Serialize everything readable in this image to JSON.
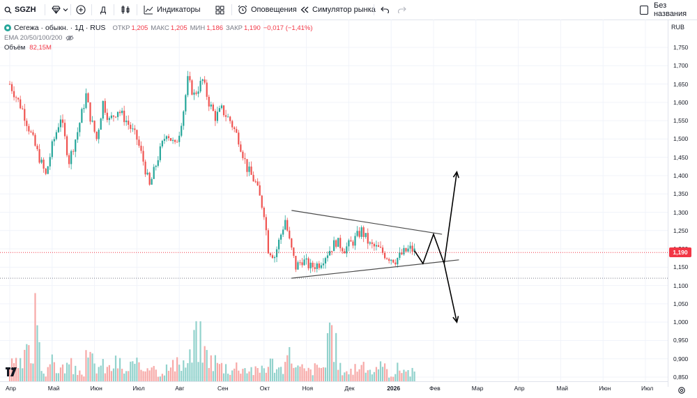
{
  "toolbar": {
    "symbol": "SGZH",
    "interval": "Д",
    "indicators_label": "Индикаторы",
    "alerts_label": "Оповещения",
    "replay_label": "Симулятор рынка",
    "layout_name": "Без названия"
  },
  "legend": {
    "title": "Сегежа · обыкн. · 1Д · RUS",
    "open_label": "ОТКР",
    "open": "1,205",
    "high_label": "МАКС",
    "high": "1,205",
    "low_label": "МИН",
    "low": "1,186",
    "close_label": "ЗАКР",
    "close": "1,190",
    "change": "−0,017 (−1,41%)",
    "ema": "EMA 20/50/100/200",
    "volume_label": "Объём",
    "volume": "82,15M"
  },
  "price_axis": {
    "currency": "RUB",
    "current_price": "1,190",
    "ticks": [
      "1,750",
      "1,700",
      "1,650",
      "1,600",
      "1,550",
      "1,500",
      "1,450",
      "1,400",
      "1,350",
      "1,300",
      "1,250",
      "1,200",
      "1,150",
      "1,100",
      "1,050",
      "1,000",
      "0,950",
      "0,900",
      "0,850"
    ]
  },
  "time_axis": {
    "labels": [
      "Апр",
      "Май",
      "Июн",
      "Июл",
      "Авг",
      "Сен",
      "Окт",
      "Ноя",
      "Дек",
      "2026",
      "Фев",
      "Мар",
      "Апр",
      "Май",
      "Июн",
      "Июл"
    ]
  },
  "colors": {
    "up": "#26a69a",
    "down": "#ef5350",
    "current": "#f23645",
    "drawing": "#000000"
  },
  "chart_data": {
    "type": "candlestick",
    "title": "Сегежа · обыкн. · 1Д · RUS",
    "ylim": [
      0.84,
      1.78
    ],
    "price_ticks": [
      1.75,
      1.7,
      1.65,
      1.6,
      1.55,
      1.5,
      1.45,
      1.4,
      1.35,
      1.3,
      1.25,
      1.2,
      1.15,
      1.1,
      1.05,
      1.0,
      0.95,
      0.9,
      0.85
    ],
    "current_price": 1.19,
    "horizontal_levels": [
      1.19,
      1.12
    ],
    "months": [
      "Апр",
      "Май",
      "Июн",
      "Июл",
      "Авг",
      "Сен",
      "Окт",
      "Ноя",
      "Дек",
      "2026",
      "Фев",
      "Мар",
      "Апр",
      "Май",
      "Июн",
      "Июл"
    ],
    "close_path": [
      [
        0,
        1.65
      ],
      [
        0.3,
        1.58
      ],
      [
        0.6,
        1.48
      ],
      [
        0.85,
        1.4
      ],
      [
        1.0,
        1.48
      ],
      [
        1.2,
        1.56
      ],
      [
        1.4,
        1.44
      ],
      [
        1.6,
        1.52
      ],
      [
        1.8,
        1.62
      ],
      [
        1.9,
        1.56
      ],
      [
        2.05,
        1.5
      ],
      [
        2.2,
        1.6
      ],
      [
        2.35,
        1.55
      ],
      [
        2.55,
        1.58
      ],
      [
        2.75,
        1.55
      ],
      [
        3.0,
        1.5
      ],
      [
        3.15,
        1.44
      ],
      [
        3.3,
        1.37
      ],
      [
        3.5,
        1.45
      ],
      [
        3.7,
        1.52
      ],
      [
        3.9,
        1.48
      ],
      [
        4.0,
        1.52
      ],
      [
        4.1,
        1.58
      ],
      [
        4.2,
        1.66
      ],
      [
        4.35,
        1.62
      ],
      [
        4.55,
        1.66
      ],
      [
        4.7,
        1.6
      ],
      [
        4.85,
        1.56
      ],
      [
        5.0,
        1.58
      ],
      [
        5.2,
        1.55
      ],
      [
        5.4,
        1.5
      ],
      [
        5.6,
        1.42
      ],
      [
        5.8,
        1.38
      ],
      [
        6.0,
        1.3
      ],
      [
        6.1,
        1.2
      ],
      [
        6.25,
        1.18
      ],
      [
        6.35,
        1.22
      ],
      [
        6.5,
        1.28
      ],
      [
        6.6,
        1.22
      ],
      [
        6.75,
        1.15
      ],
      [
        6.9,
        1.17
      ],
      [
        7.1,
        1.15
      ],
      [
        7.3,
        1.16
      ],
      [
        7.5,
        1.19
      ],
      [
        7.7,
        1.22
      ],
      [
        7.9,
        1.2
      ],
      [
        8.1,
        1.22
      ],
      [
        8.3,
        1.25
      ],
      [
        8.5,
        1.21
      ],
      [
        8.7,
        1.2
      ],
      [
        8.9,
        1.18
      ],
      [
        9.1,
        1.17
      ],
      [
        9.3,
        1.19
      ],
      [
        9.45,
        1.2
      ],
      [
        9.6,
        1.19
      ]
    ],
    "volume": [
      [
        0.0,
        0.12
      ],
      [
        0.3,
        0.2
      ],
      [
        0.5,
        0.1
      ],
      [
        0.6,
        0.55
      ],
      [
        0.75,
        0.08
      ],
      [
        0.9,
        0.14
      ],
      [
        1.1,
        0.1
      ],
      [
        1.3,
        0.12
      ],
      [
        1.5,
        0.08
      ],
      [
        1.8,
        0.16
      ],
      [
        2.0,
        0.12
      ],
      [
        2.2,
        0.1
      ],
      [
        2.4,
        0.14
      ],
      [
        2.6,
        0.08
      ],
      [
        2.8,
        0.12
      ],
      [
        3.0,
        0.1
      ],
      [
        3.2,
        0.16
      ],
      [
        3.4,
        0.08
      ],
      [
        3.6,
        0.1
      ],
      [
        3.8,
        0.12
      ],
      [
        4.0,
        0.14
      ],
      [
        4.2,
        0.18
      ],
      [
        4.35,
        0.32
      ],
      [
        4.5,
        0.22
      ],
      [
        4.7,
        0.16
      ],
      [
        4.9,
        0.12
      ],
      [
        5.1,
        0.1
      ],
      [
        5.3,
        0.12
      ],
      [
        5.5,
        0.1
      ],
      [
        5.7,
        0.08
      ],
      [
        5.9,
        0.12
      ],
      [
        6.1,
        0.14
      ],
      [
        6.3,
        0.1
      ],
      [
        6.5,
        0.2
      ],
      [
        6.7,
        0.1
      ],
      [
        6.9,
        0.08
      ],
      [
        7.1,
        0.1
      ],
      [
        7.3,
        0.12
      ],
      [
        7.5,
        0.3
      ],
      [
        7.7,
        0.1
      ],
      [
        7.9,
        0.08
      ],
      [
        8.1,
        0.12
      ],
      [
        8.3,
        0.1
      ],
      [
        8.5,
        0.08
      ],
      [
        8.7,
        0.1
      ],
      [
        8.9,
        0.06
      ],
      [
        9.1,
        0.1
      ],
      [
        9.3,
        0.08
      ],
      [
        9.5,
        0.05
      ]
    ],
    "triangle_upper": [
      [
        6.65,
        1.305
      ],
      [
        10.2,
        1.24
      ]
    ],
    "triangle_lower": [
      [
        6.65,
        1.12
      ],
      [
        10.6,
        1.17
      ]
    ],
    "projection": [
      [
        9.55,
        1.195
      ],
      [
        9.75,
        1.16
      ],
      [
        10.0,
        1.24
      ],
      [
        10.25,
        1.16
      ],
      [
        10.55,
        1.41
      ],
      [
        10.25,
        1.16
      ],
      [
        10.55,
        1.0
      ]
    ]
  }
}
